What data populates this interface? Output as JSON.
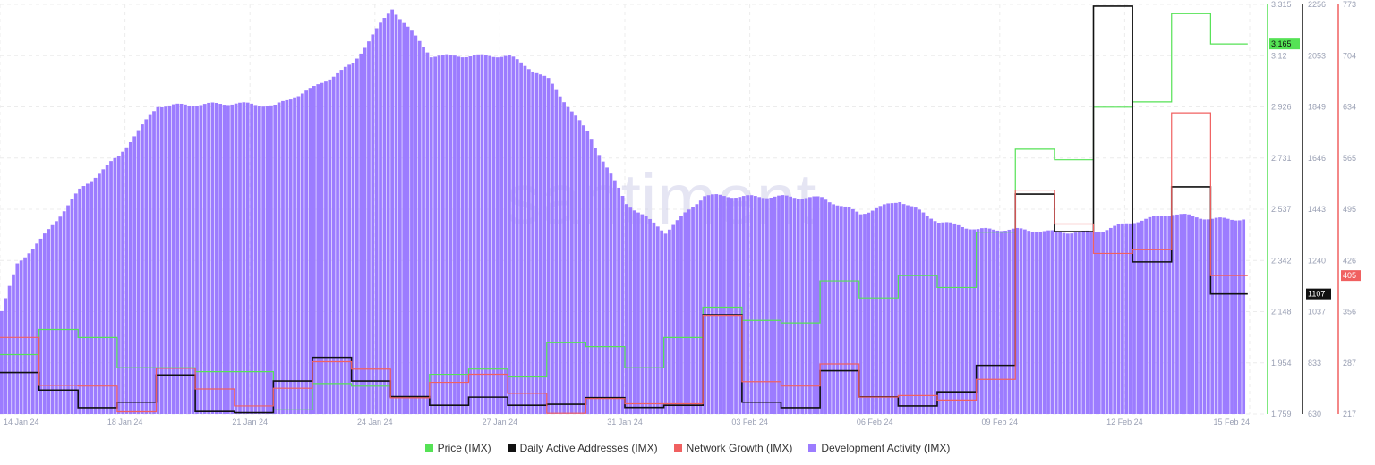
{
  "chart_data": {
    "type": "line",
    "watermark": "santiment",
    "x": {
      "ticks": [
        "14 Jan 24",
        "18 Jan 24",
        "21 Jan 24",
        "24 Jan 24",
        "27 Jan 24",
        "31 Jan 24",
        "03 Feb 24",
        "06 Feb 24",
        "09 Feb 24",
        "12 Feb 24",
        "15 Feb 24"
      ],
      "range": [
        0,
        32
      ]
    },
    "axes": {
      "price": {
        "color": "#55e255",
        "min": 1.759,
        "max": 3.315,
        "ticks": [
          "3.315",
          "3.12",
          "2.926",
          "2.731",
          "2.537",
          "2.342",
          "2.148",
          "1.954",
          "1.759"
        ],
        "current": "3.165"
      },
      "daa": {
        "color": "#111111",
        "min": 630,
        "max": 2256,
        "ticks": [
          "2256",
          "2053",
          "1849",
          "1646",
          "1443",
          "1240",
          "1037",
          "833",
          "630"
        ],
        "current": "1107"
      },
      "ng": {
        "color": "#f06060",
        "min": 217,
        "max": 773,
        "ticks": [
          "773",
          "704",
          "634",
          "565",
          "495",
          "426",
          "356",
          "287",
          "217"
        ],
        "current": "405"
      }
    },
    "series": [
      {
        "name": "Price (IMX)",
        "color": "#55e255",
        "axis": "price",
        "style": "step",
        "points": [
          [
            0,
            1.985
          ],
          [
            1,
            2.08
          ],
          [
            2,
            2.05
          ],
          [
            3,
            1.935
          ],
          [
            4,
            1.935
          ],
          [
            5,
            1.92
          ],
          [
            6,
            1.92
          ],
          [
            7,
            1.775
          ],
          [
            8,
            1.875
          ],
          [
            9,
            1.865
          ],
          [
            10,
            1.825
          ],
          [
            11,
            1.91
          ],
          [
            12,
            1.93
          ],
          [
            13,
            1.9
          ],
          [
            14,
            2.03
          ],
          [
            15,
            2.015
          ],
          [
            16,
            1.935
          ],
          [
            17,
            2.05
          ],
          [
            18,
            2.165
          ],
          [
            19,
            2.115
          ],
          [
            20,
            2.105
          ],
          [
            21,
            2.265
          ],
          [
            22,
            2.2
          ],
          [
            23,
            2.285
          ],
          [
            24,
            2.24
          ],
          [
            25,
            2.45
          ],
          [
            26,
            2.765
          ],
          [
            27,
            2.725
          ],
          [
            28,
            2.925
          ],
          [
            29,
            2.945
          ],
          [
            30,
            3.28
          ],
          [
            31,
            3.165
          ]
        ]
      },
      {
        "name": "Daily Active Addresses (IMX)",
        "color": "#111111",
        "axis": "daa",
        "style": "step",
        "points": [
          [
            0,
            795
          ],
          [
            1,
            725
          ],
          [
            2,
            655
          ],
          [
            3,
            677
          ],
          [
            4,
            785
          ],
          [
            5,
            640
          ],
          [
            6,
            635
          ],
          [
            7,
            761
          ],
          [
            8,
            855
          ],
          [
            9,
            761
          ],
          [
            10,
            699
          ],
          [
            11,
            665
          ],
          [
            12,
            697
          ],
          [
            13,
            665
          ],
          [
            14,
            669
          ],
          [
            15,
            695
          ],
          [
            16,
            656
          ],
          [
            17,
            665
          ],
          [
            18,
            1024
          ],
          [
            19,
            677
          ],
          [
            20,
            655
          ],
          [
            21,
            802
          ],
          [
            22,
            698
          ],
          [
            23,
            662
          ],
          [
            24,
            718
          ],
          [
            25,
            823
          ],
          [
            26,
            1503
          ],
          [
            27,
            1354
          ],
          [
            28,
            2249
          ],
          [
            29,
            1234
          ],
          [
            30,
            1532
          ],
          [
            31,
            1107
          ]
        ]
      },
      {
        "name": "Network Growth (IMX)",
        "color": "#f06060",
        "axis": "ng",
        "style": "step",
        "points": [
          [
            0,
            321
          ],
          [
            1,
            256
          ],
          [
            2,
            255
          ],
          [
            3,
            220
          ],
          [
            4,
            279
          ],
          [
            5,
            251
          ],
          [
            6,
            228
          ],
          [
            7,
            252
          ],
          [
            8,
            288
          ],
          [
            9,
            278
          ],
          [
            10,
            239
          ],
          [
            11,
            260
          ],
          [
            12,
            271
          ],
          [
            13,
            245
          ],
          [
            14,
            218
          ],
          [
            15,
            238
          ],
          [
            16,
            231
          ],
          [
            17,
            231
          ],
          [
            18,
            351
          ],
          [
            19,
            261
          ],
          [
            20,
            255
          ],
          [
            21,
            285
          ],
          [
            22,
            240
          ],
          [
            23,
            242
          ],
          [
            24,
            236
          ],
          [
            25,
            264
          ],
          [
            26,
            521
          ],
          [
            27,
            475
          ],
          [
            28,
            435
          ],
          [
            29,
            440
          ],
          [
            30,
            626
          ],
          [
            31,
            405
          ]
        ]
      },
      {
        "name": "Development Activity (IMX)",
        "color": "#9c7cff",
        "axis": "price",
        "style": "bars",
        "points": [
          [
            0,
            2.15
          ],
          [
            0.4,
            2.33
          ],
          [
            1,
            2.42
          ],
          [
            2,
            2.61
          ],
          [
            3,
            2.74
          ],
          [
            4,
            2.93
          ],
          [
            5,
            2.935
          ],
          [
            6,
            2.94
          ],
          [
            7,
            2.93
          ],
          [
            8,
            3.0
          ],
          [
            9,
            3.09
          ],
          [
            9.5,
            3.2
          ],
          [
            10,
            3.3
          ],
          [
            11,
            3.12
          ],
          [
            12,
            3.12
          ],
          [
            13,
            3.12
          ],
          [
            14,
            3.03
          ],
          [
            15,
            2.83
          ],
          [
            16,
            2.56
          ],
          [
            17,
            2.45
          ],
          [
            18,
            2.59
          ],
          [
            19,
            2.585
          ],
          [
            20,
            2.585
          ],
          [
            21,
            2.58
          ],
          [
            22,
            2.52
          ],
          [
            23,
            2.57
          ],
          [
            24,
            2.49
          ],
          [
            25,
            2.46
          ],
          [
            26,
            2.46
          ],
          [
            27,
            2.45
          ],
          [
            28,
            2.45
          ],
          [
            29,
            2.49
          ],
          [
            30,
            2.52
          ],
          [
            31,
            2.5
          ]
        ]
      }
    ]
  },
  "legend": [
    {
      "label": "Price (IMX)",
      "color": "#55e255"
    },
    {
      "label": "Daily Active Addresses (IMX)",
      "color": "#111111"
    },
    {
      "label": "Network Growth (IMX)",
      "color": "#f06060"
    },
    {
      "label": "Development Activity (IMX)",
      "color": "#9c7cff"
    }
  ]
}
